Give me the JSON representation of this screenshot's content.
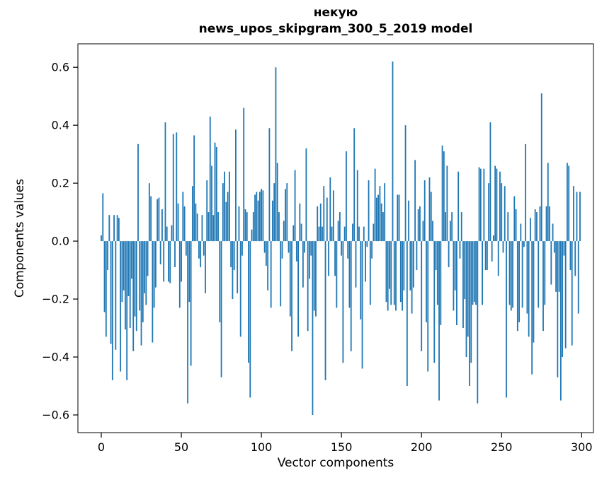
{
  "figure": {
    "title_line1": "некую",
    "title_line2": "news_upos_skipgram_300_5_2019 model",
    "xlabel": "Vector components",
    "ylabel": "Components values"
  },
  "chart_data": {
    "type": "bar",
    "title": "некую\nnews_upos_skipgram_300_5_2019 model",
    "xlabel": "Vector components",
    "ylabel": "Components values",
    "bar_color": "#1f77b4",
    "axis_color": "#000000",
    "grid": false,
    "legend": null,
    "n_components": 300,
    "x_ticks": [
      0,
      50,
      100,
      150,
      200,
      250,
      300
    ],
    "y_ticks": [
      0.6,
      0.4,
      0.2,
      0.0,
      -0.2,
      -0.4,
      -0.6
    ],
    "y_tick_labels": [
      "0.6",
      "0.4",
      "0.2",
      "0.0",
      "−0.2",
      "−0.4",
      "−0.6"
    ],
    "xlim": [
      -14.6,
      307.4
    ],
    "ylim": [
      -0.661,
      0.681
    ],
    "values": [
      0.02,
      0.165,
      -0.245,
      -0.33,
      -0.1,
      0.09,
      -0.355,
      -0.48,
      0.09,
      -0.375,
      0.09,
      0.08,
      -0.45,
      -0.21,
      -0.17,
      -0.305,
      -0.48,
      -0.19,
      -0.3,
      -0.13,
      -0.38,
      -0.26,
      -0.31,
      0.335,
      -0.24,
      -0.36,
      -0.28,
      -0.18,
      -0.22,
      -0.12,
      0.2,
      0.155,
      -0.35,
      -0.23,
      -0.16,
      0.145,
      0.15,
      -0.08,
      0.11,
      -0.14,
      0.41,
      0.05,
      -0.14,
      -0.145,
      0.055,
      0.37,
      -0.09,
      0.375,
      0.13,
      -0.23,
      -0.14,
      0.17,
      0.12,
      -0.05,
      -0.56,
      -0.21,
      -0.43,
      0.19,
      0.365,
      0.13,
      0.095,
      -0.06,
      -0.09,
      0.09,
      -0.05,
      -0.18,
      0.21,
      0.1,
      0.43,
      0.26,
      0.09,
      0.34,
      0.325,
      0.1,
      -0.28,
      -0.47,
      0.2,
      0.24,
      0.135,
      0.17,
      0.24,
      -0.09,
      -0.2,
      -0.1,
      0.385,
      -0.18,
      0.12,
      -0.33,
      -0.05,
      0.46,
      0.11,
      0.1,
      -0.42,
      -0.54,
      0.04,
      0.1,
      0.16,
      0.17,
      0.14,
      0.17,
      0.18,
      0.175,
      -0.04,
      -0.085,
      -0.17,
      0.39,
      -0.23,
      0.14,
      0.2,
      0.6,
      0.27,
      0.1,
      -0.225,
      -0.06,
      0.07,
      0.18,
      0.2,
      -0.04,
      -0.26,
      -0.38,
      0.055,
      0.245,
      -0.07,
      -0.33,
      0.13,
      0.06,
      -0.16,
      -0.04,
      0.32,
      -0.31,
      -0.13,
      -0.05,
      -0.6,
      -0.24,
      -0.26,
      0.12,
      0.05,
      0.13,
      0.05,
      0.19,
      -0.48,
      0.15,
      -0.12,
      0.22,
      0.05,
      0.175,
      -0.12,
      -0.23,
      0.07,
      0.1,
      -0.05,
      -0.42,
      0.05,
      0.31,
      -0.06,
      -0.23,
      -0.38,
      0.06,
      0.39,
      -0.16,
      0.245,
      0.05,
      -0.27,
      -0.44,
      0.05,
      -0.14,
      -0.02,
      0.21,
      -0.22,
      -0.06,
      0.06,
      0.25,
      0.15,
      0.16,
      0.19,
      0.13,
      0.1,
      0.2,
      -0.21,
      -0.24,
      -0.165,
      -0.22,
      0.62,
      -0.22,
      -0.24,
      0.16,
      0.16,
      -0.21,
      -0.24,
      -0.17,
      0.4,
      -0.5,
      0.14,
      -0.17,
      -0.25,
      -0.16,
      0.28,
      -0.1,
      0.11,
      0.12,
      -0.38,
      0.07,
      0.21,
      -0.28,
      -0.45,
      0.22,
      0.17,
      0.07,
      -0.42,
      -0.1,
      -0.22,
      -0.55,
      -0.29,
      0.33,
      0.31,
      0.1,
      0.26,
      -0.09,
      0.07,
      0.1,
      -0.24,
      -0.17,
      -0.29,
      0.24,
      -0.06,
      0.1,
      -0.3,
      -0.2,
      -0.4,
      -0.33,
      -0.5,
      -0.42,
      -0.22,
      -0.21,
      -0.22,
      -0.56,
      0.255,
      0.25,
      -0.22,
      0.25,
      -0.1,
      -0.1,
      0.2,
      0.41,
      -0.07,
      0.02,
      0.26,
      0.25,
      -0.12,
      0.24,
      0.2,
      -0.04,
      0.19,
      -0.54,
      0.1,
      -0.22,
      -0.24,
      -0.23,
      0.155,
      0.11,
      -0.31,
      -0.28,
      0.06,
      -0.23,
      -0.02,
      0.335,
      -0.25,
      -0.33,
      0.08,
      -0.46,
      -0.35,
      0.11,
      0.1,
      -0.23,
      0.12,
      0.51,
      -0.31,
      -0.22,
      0.12,
      0.27,
      0.12,
      -0.15,
      0.06,
      -0.04,
      -0.175,
      -0.47,
      -0.175,
      -0.55,
      -0.4,
      -0.05,
      -0.37,
      0.27,
      0.26,
      -0.1,
      -0.36,
      0.19,
      -0.12,
      0.17,
      -0.25,
      0.17
    ]
  }
}
